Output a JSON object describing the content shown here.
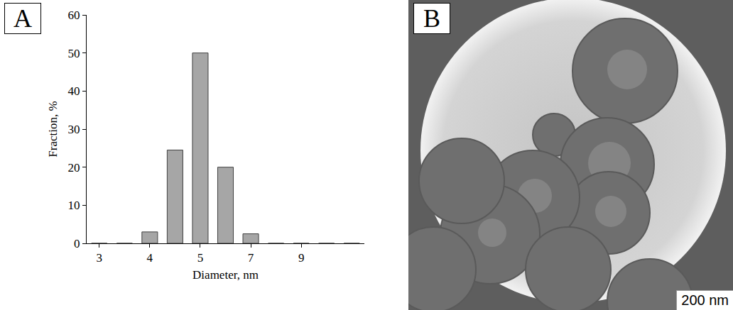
{
  "chart_data": {
    "type": "bar",
    "annotations": [
      "A"
    ],
    "x_label": "Diameter, nm",
    "y_label": "Fraction, %",
    "categories": [
      "3",
      null,
      "4",
      null,
      "5",
      null,
      "7",
      null,
      "9",
      null,
      null
    ],
    "values": [
      0,
      0,
      3,
      24.5,
      50,
      20,
      2.5,
      0,
      0,
      0,
      0
    ],
    "color": "#a6a6a6",
    "ylim": [
      0,
      60
    ],
    "yticks": [
      0,
      10,
      20,
      30,
      40,
      50,
      60
    ],
    "grid": false
  },
  "image": {
    "label": "B",
    "scale_bar": "200 nm"
  }
}
